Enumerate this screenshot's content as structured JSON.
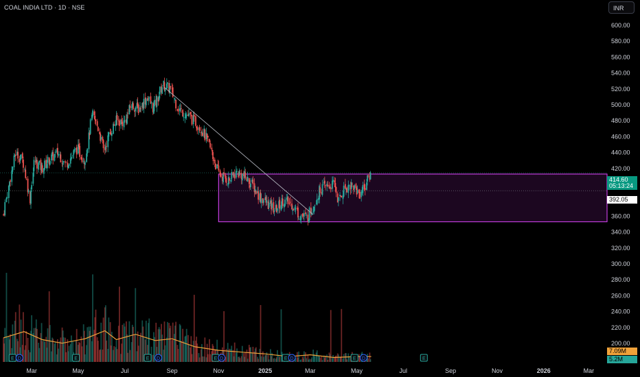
{
  "header": {
    "title": "COAL INDIA LTD · 1D · NSE",
    "currency": "INR"
  },
  "colors": {
    "up": "#26a69a",
    "down": "#ef5350",
    "box": "#c03ddc",
    "volume_ma": "#f0a23a",
    "earnings": "#26a69a",
    "dividend": "#2962ff"
  },
  "price_tags": {
    "current_price": "414.60",
    "countdown": "05:13:24",
    "reference_price": "392.05",
    "volume": "7.09M",
    "volume_ma": "5.2M"
  },
  "chart_data": {
    "type": "candlestick",
    "title": "COAL INDIA LTD · 1D · NSE",
    "y_axis": {
      "ticks": [
        "600.00",
        "580.00",
        "560.00",
        "540.00",
        "520.00",
        "500.00",
        "480.00",
        "460.00",
        "440.00",
        "420.00",
        "400.00",
        "380.00",
        "360.00",
        "340.00",
        "320.00",
        "300.00",
        "280.00",
        "260.00",
        "240.00",
        "220.00",
        "200.00"
      ],
      "range": [
        190,
        610
      ]
    },
    "x_axis": {
      "ticks": [
        "Mar",
        "May",
        "Jul",
        "Sep",
        "Nov",
        "2025",
        "Mar",
        "May",
        "Jul",
        "Sep",
        "Nov",
        "2026",
        "Mar"
      ],
      "range": [
        "2024-01-24",
        "2026-03-25"
      ]
    },
    "price_path": [
      [
        "2024-01-24",
        362
      ],
      [
        "2024-02-05",
        420
      ],
      [
        "2024-02-09",
        440
      ],
      [
        "2024-02-19",
        430
      ],
      [
        "2024-02-28",
        382
      ],
      [
        "2024-03-05",
        430
      ],
      [
        "2024-03-15",
        420
      ],
      [
        "2024-03-25",
        432
      ],
      [
        "2024-04-05",
        440
      ],
      [
        "2024-04-15",
        425
      ],
      [
        "2024-04-30",
        445
      ],
      [
        "2024-05-10",
        430
      ],
      [
        "2024-05-20",
        488
      ],
      [
        "2024-05-28",
        470
      ],
      [
        "2024-06-04",
        442
      ],
      [
        "2024-06-10",
        460
      ],
      [
        "2024-06-20",
        480
      ],
      [
        "2024-07-01",
        478
      ],
      [
        "2024-07-10",
        500
      ],
      [
        "2024-07-20",
        495
      ],
      [
        "2024-07-31",
        510
      ],
      [
        "2024-08-08",
        495
      ],
      [
        "2024-08-20",
        525
      ],
      [
        "2024-08-30",
        520
      ],
      [
        "2024-09-10",
        495
      ],
      [
        "2024-09-20",
        488
      ],
      [
        "2024-09-30",
        480
      ],
      [
        "2024-10-10",
        470
      ],
      [
        "2024-10-20",
        450
      ],
      [
        "2024-10-30",
        420
      ],
      [
        "2024-11-05",
        410
      ],
      [
        "2024-11-15",
        405
      ],
      [
        "2024-11-25",
        415
      ],
      [
        "2024-12-05",
        410
      ],
      [
        "2024-12-15",
        400
      ],
      [
        "2024-12-25",
        385
      ],
      [
        "2025-01-05",
        375
      ],
      [
        "2025-01-15",
        368
      ],
      [
        "2025-01-25",
        380
      ],
      [
        "2025-02-05",
        375
      ],
      [
        "2025-02-15",
        362
      ],
      [
        "2025-02-25",
        358
      ],
      [
        "2025-03-05",
        372
      ],
      [
        "2025-03-15",
        395
      ],
      [
        "2025-03-25",
        398
      ],
      [
        "2025-04-03",
        400
      ],
      [
        "2025-04-07",
        378
      ],
      [
        "2025-04-15",
        395
      ],
      [
        "2025-04-25",
        400
      ],
      [
        "2025-05-05",
        388
      ],
      [
        "2025-05-12",
        398
      ],
      [
        "2025-05-20",
        414.6
      ]
    ],
    "volume_ma_path": [
      [
        "2024-01-24",
        0.27
      ],
      [
        "2024-02-20",
        0.34
      ],
      [
        "2024-03-15",
        0.25
      ],
      [
        "2024-04-10",
        0.21
      ],
      [
        "2024-05-10",
        0.26
      ],
      [
        "2024-06-05",
        0.35
      ],
      [
        "2024-06-20",
        0.25
      ],
      [
        "2024-07-15",
        0.31
      ],
      [
        "2024-08-10",
        0.24
      ],
      [
        "2024-09-01",
        0.26
      ],
      [
        "2024-10-01",
        0.17
      ],
      [
        "2024-11-01",
        0.13
      ],
      [
        "2024-12-01",
        0.11
      ],
      [
        "2025-01-01",
        0.09
      ],
      [
        "2025-02-01",
        0.06
      ],
      [
        "2025-03-01",
        0.08
      ],
      [
        "2025-04-01",
        0.05
      ],
      [
        "2025-05-01",
        0.06
      ],
      [
        "2025-05-20",
        0.06
      ]
    ],
    "trendline": {
      "start": [
        "2024-08-22",
        522
      ],
      "end": [
        "2025-03-05",
        362
      ]
    },
    "range_box": {
      "x": [
        "2024-11-01",
        "2026-03-25"
      ],
      "y": [
        353,
        413
      ]
    },
    "horizontal_levels": [
      414.6,
      392.05
    ],
    "event_markers": [
      {
        "date": "2024-02-05",
        "type": "E"
      },
      {
        "date": "2024-02-14",
        "type": "D"
      },
      {
        "date": "2024-04-28",
        "type": "E"
      },
      {
        "date": "2024-07-31",
        "type": "E"
      },
      {
        "date": "2024-08-14",
        "type": "D"
      },
      {
        "date": "2024-10-28",
        "type": "E"
      },
      {
        "date": "2024-11-05",
        "type": "D"
      },
      {
        "date": "2025-01-28",
        "type": "E"
      },
      {
        "date": "2025-02-05",
        "type": "D"
      },
      {
        "date": "2025-04-28",
        "type": "E"
      },
      {
        "date": "2025-05-10",
        "type": "D"
      },
      {
        "date": "2025-07-28",
        "type": "E"
      }
    ]
  }
}
